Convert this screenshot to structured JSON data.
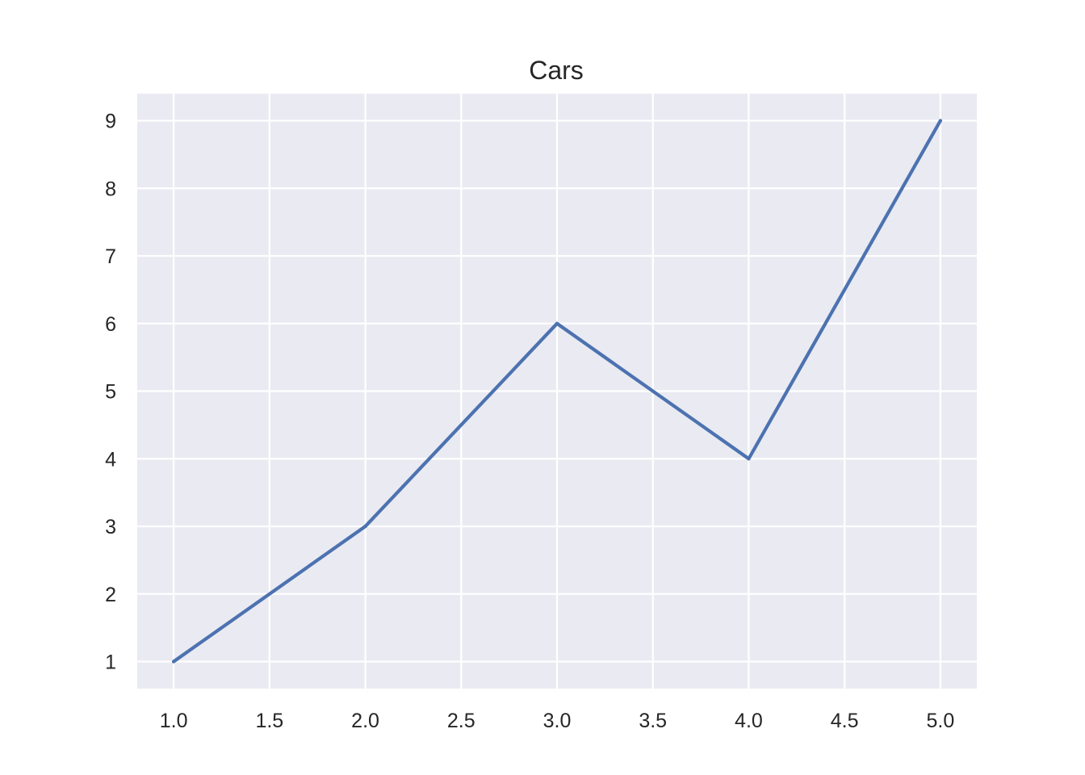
{
  "chart_data": {
    "type": "line",
    "title": "Cars",
    "xlabel": "",
    "ylabel": "",
    "x": [
      1,
      2,
      3,
      4,
      5
    ],
    "series": [
      {
        "values": [
          1,
          3,
          6,
          4,
          9
        ]
      }
    ],
    "xlim": [
      0.81,
      5.19
    ],
    "ylim": [
      0.6,
      9.4
    ],
    "x_ticks": [
      "1.0",
      "1.5",
      "2.0",
      "2.5",
      "3.0",
      "3.5",
      "4.0",
      "4.5",
      "5.0"
    ],
    "y_ticks": [
      "1",
      "2",
      "3",
      "4",
      "5",
      "6",
      "7",
      "8",
      "9"
    ],
    "grid": true,
    "legend": "none",
    "colors": {
      "plot_background": "#eaeaf2",
      "grid": "#ffffff",
      "series": "#4c72b0",
      "text": "#262626"
    }
  }
}
